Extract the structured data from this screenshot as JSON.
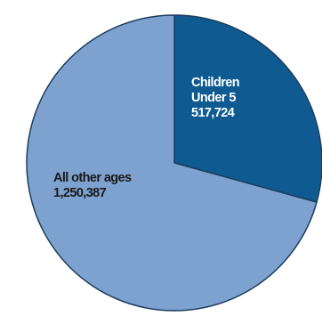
{
  "chart_data": {
    "type": "pie",
    "colors": {
      "outline": "#1c3e5c"
    },
    "slices": [
      {
        "label_lines": [
          "Children",
          "Under 5",
          "517,724"
        ],
        "value": 517724,
        "color": "#0e5a91",
        "text_color": "#ffffff"
      },
      {
        "label_lines": [
          "All other ages",
          "1,250,387"
        ],
        "value": 1250387,
        "color": "#7ea2cf",
        "text_color": "#1a1a1a"
      }
    ]
  }
}
